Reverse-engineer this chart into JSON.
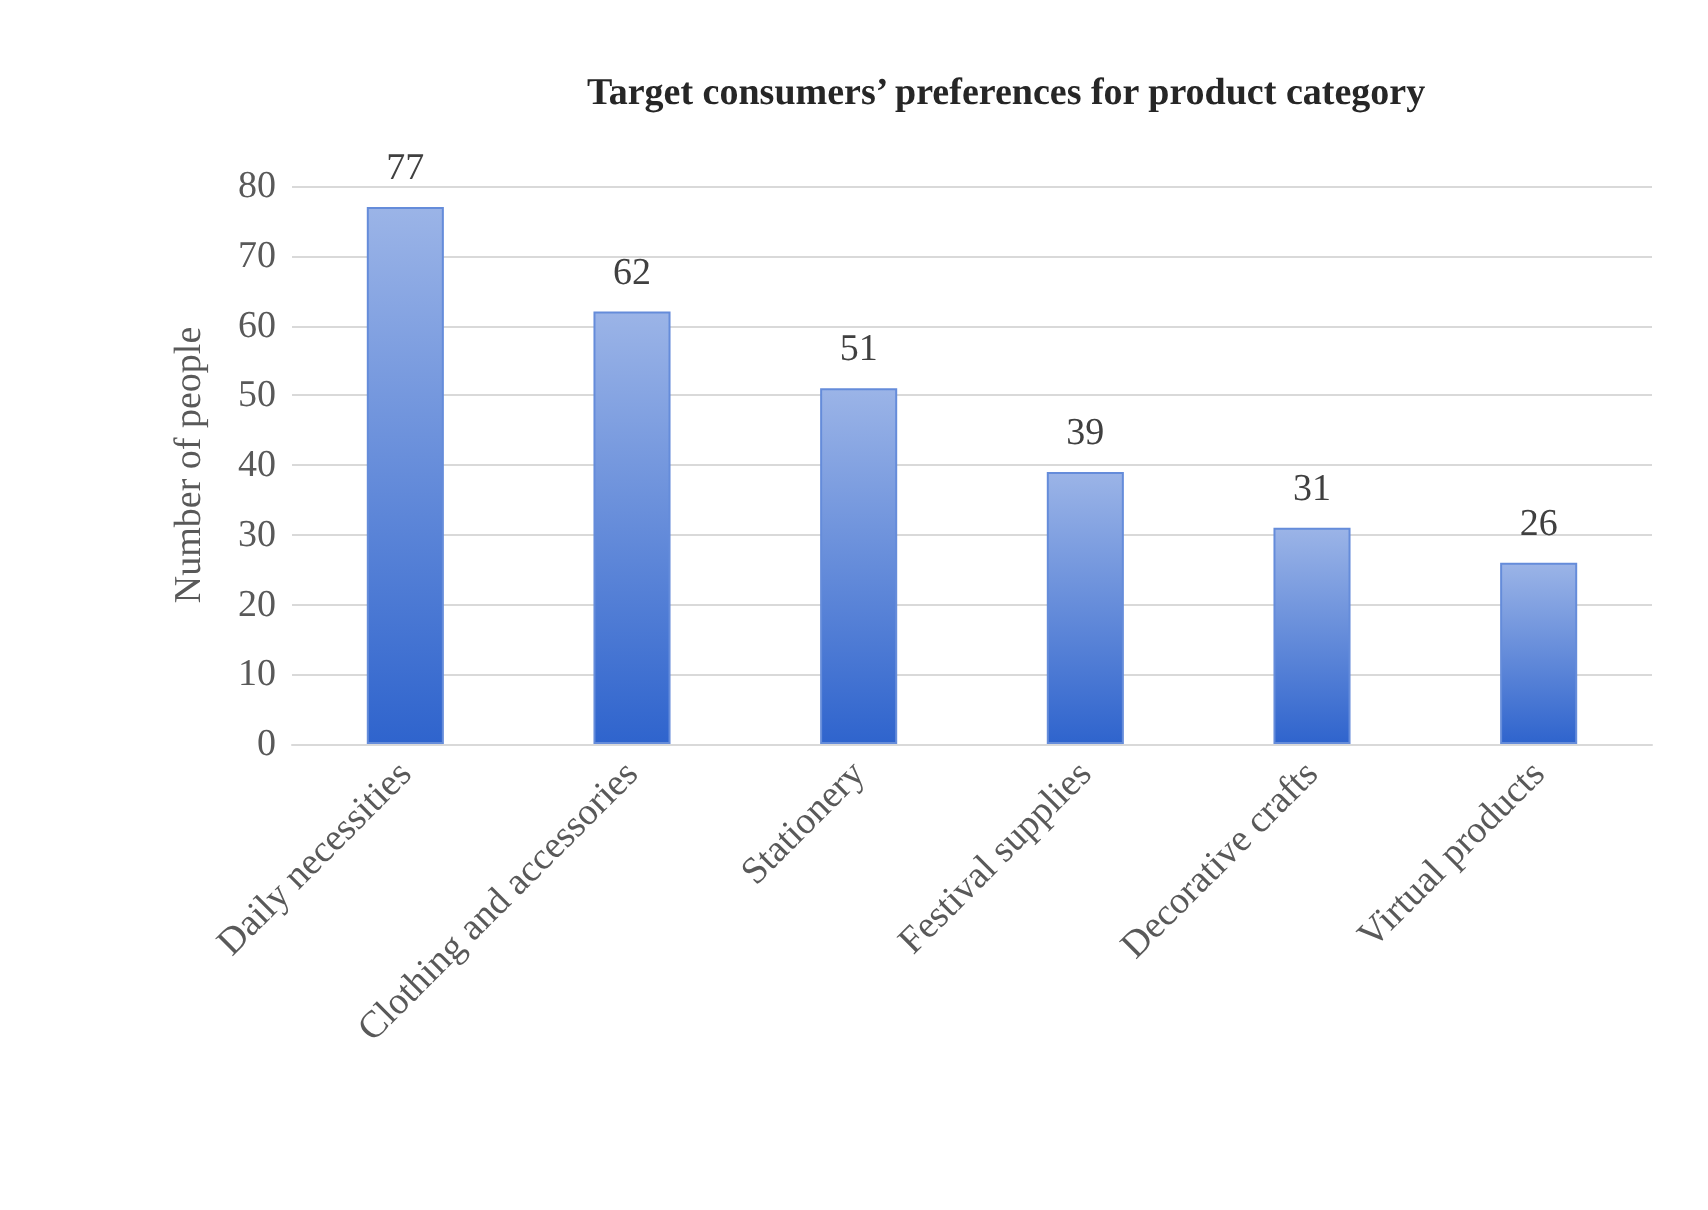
{
  "chart_data": {
    "type": "bar",
    "title": "Target consumers’ preferences for product category",
    "ylabel": "Number of people",
    "categories": [
      "Daily necessities",
      "Clothing and accessories",
      "Stationery",
      "Festival supplies",
      "Decorative crafts",
      "Virtual products"
    ],
    "values": [
      77,
      62,
      51,
      39,
      31,
      26
    ],
    "color": "#658cda",
    "ylim": [
      0,
      80
    ],
    "yticks": [
      0,
      10,
      20,
      30,
      40,
      50,
      60,
      70,
      80
    ],
    "grid": "y",
    "data_labels": true
  }
}
